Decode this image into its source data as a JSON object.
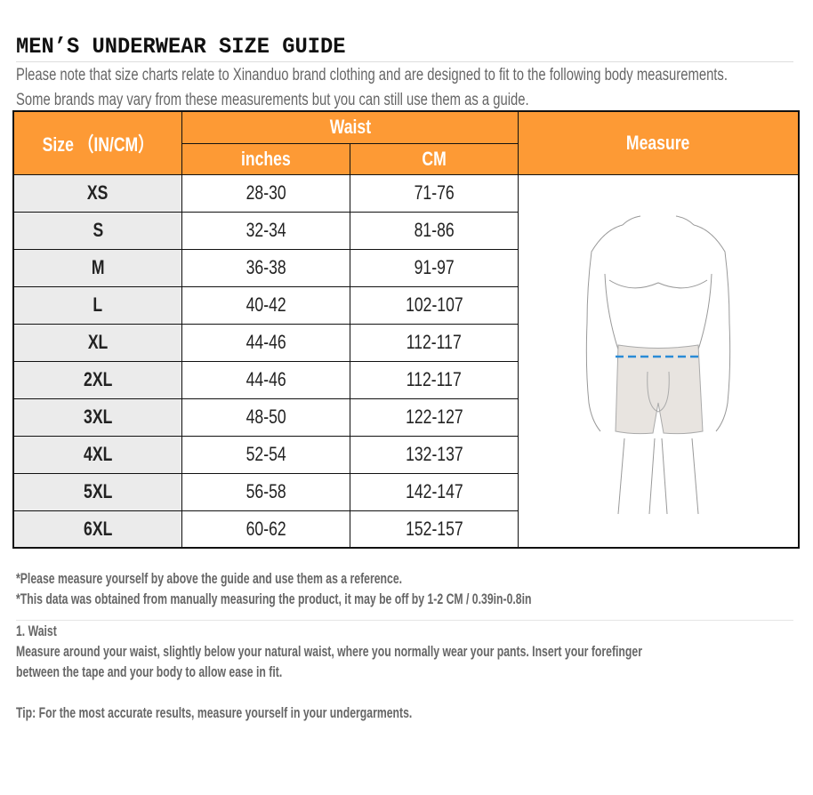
{
  "title": "MEN’S UNDERWEAR SIZE GUIDE",
  "intro": [
    "Please note that size charts relate to Xinanduo brand clothing and are designed to fit to the following body measurements.",
    "Some brands may vary from these measurements but you can still use them as a guide."
  ],
  "table": {
    "header": {
      "size": "Size （IN/CM）",
      "waist": "Waist",
      "inches": "inches",
      "cm": "CM",
      "measure": "Measure"
    },
    "rows": [
      {
        "size": "XS",
        "inches": "28-30",
        "cm": "71-76"
      },
      {
        "size": "S",
        "inches": "32-34",
        "cm": "81-86"
      },
      {
        "size": "M",
        "inches": "36-38",
        "cm": "91-97"
      },
      {
        "size": "L",
        "inches": "40-42",
        "cm": "102-107"
      },
      {
        "size": "XL",
        "inches": "44-46",
        "cm": "112-117"
      },
      {
        "size": "2XL",
        "inches": "44-46",
        "cm": "112-117"
      },
      {
        "size": "3XL",
        "inches": "48-50",
        "cm": "122-127"
      },
      {
        "size": "4XL",
        "inches": "52-54",
        "cm": "132-137"
      },
      {
        "size": "5XL",
        "inches": "56-58",
        "cm": "142-147"
      },
      {
        "size": "6XL",
        "inches": "60-62",
        "cm": "152-157"
      }
    ]
  },
  "colors": {
    "header": "#fd9a35",
    "tape": "#2a8bd6"
  },
  "notes": [
    "*Please measure yourself by above the guide and use them as a reference.",
    "*This data was obtained from manually measuring the product, it may be off by 1-2 CM / 0.39in-0.8in"
  ],
  "waist_section": {
    "heading": "1. Waist",
    "body": [
      "Measure around your waist, slightly below your natural waist, where you normally wear your pants. Insert your forefinger",
      "between the tape and your body to allow ease in fit."
    ],
    "tip": "Tip: For the most accurate results, measure yourself in your undergarments."
  }
}
